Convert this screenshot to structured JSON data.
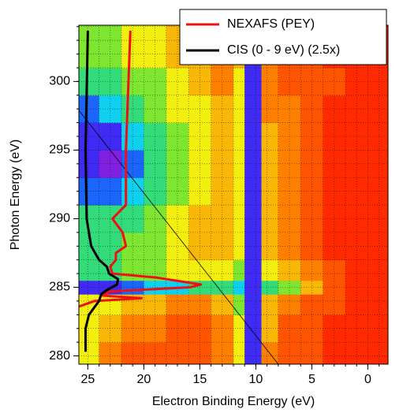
{
  "chart_data": {
    "type": "heatmap",
    "xlabel": "Electron Binding Energy (eV)",
    "ylabel": "Photon Energy (eV)",
    "xlim": [
      25.8,
      -1.8
    ],
    "ylim": [
      279.4,
      304.1
    ],
    "xticks": [
      25,
      20,
      15,
      10,
      5,
      0
    ],
    "yticks": [
      280,
      285,
      290,
      295,
      300
    ],
    "xminorticks": [
      25,
      24,
      23,
      22,
      21,
      20,
      19,
      18,
      17,
      16,
      15,
      14,
      13,
      12,
      11,
      10,
      9,
      8,
      7,
      6,
      5,
      4,
      3,
      2,
      1,
      0,
      -1
    ],
    "yminorticks": [
      280,
      281,
      282,
      283,
      284,
      285,
      286,
      287,
      288,
      289,
      290,
      291,
      292,
      293,
      294,
      295,
      296,
      297,
      298,
      299,
      300,
      301,
      302,
      303,
      304
    ],
    "grid": true,
    "legend": "upper right",
    "heatmap": {
      "x_edges": [
        25.8,
        24,
        22,
        20,
        18,
        16,
        14,
        12,
        11,
        9.5,
        8,
        6,
        4,
        2,
        -1.8
      ],
      "y_edges": [
        279.4,
        281,
        283,
        284.5,
        285.5,
        287,
        289,
        291,
        293,
        295,
        297,
        299,
        301,
        304.1
      ],
      "values": [
        [
          4,
          2,
          1,
          1,
          1,
          1,
          2,
          4,
          9,
          2,
          1,
          1,
          0,
          0
        ],
        [
          4,
          3,
          2,
          2,
          1,
          1,
          2,
          4,
          9,
          3,
          1,
          1,
          0,
          0
        ],
        [
          4,
          4,
          3,
          3,
          2,
          2,
          3,
          5,
          9,
          3,
          2,
          1,
          1,
          0
        ],
        [
          9,
          9,
          8,
          7,
          7,
          6,
          6,
          7,
          9,
          6,
          5,
          3,
          1,
          0
        ],
        [
          6,
          6,
          5,
          5,
          4,
          4,
          4,
          5,
          9,
          4,
          3,
          2,
          1,
          0
        ],
        [
          6,
          6,
          5,
          5,
          4,
          3,
          3,
          4,
          9,
          3,
          2,
          1,
          0,
          0
        ],
        [
          6,
          6,
          6,
          5,
          4,
          3,
          3,
          4,
          9,
          3,
          2,
          1,
          0,
          0
        ],
        [
          8,
          8,
          7,
          6,
          5,
          4,
          3,
          4,
          9,
          3,
          2,
          1,
          0,
          0
        ],
        [
          9,
          10,
          8,
          6,
          5,
          4,
          3,
          4,
          9,
          3,
          2,
          1,
          0,
          0
        ],
        [
          9,
          9,
          7,
          6,
          5,
          4,
          3,
          4,
          9,
          3,
          2,
          1,
          0,
          0
        ],
        [
          8,
          7,
          6,
          5,
          4,
          4,
          3,
          4,
          9,
          2,
          2,
          1,
          0,
          0
        ],
        [
          6,
          6,
          5,
          5,
          4,
          3,
          2,
          4,
          9,
          2,
          1,
          1,
          1,
          0
        ],
        [
          5,
          5,
          4,
          4,
          3,
          3,
          2,
          3,
          9,
          2,
          1,
          1,
          0,
          0
        ]
      ],
      "colormap": [
        {
          "value": 0,
          "color": "#ff2a00"
        },
        {
          "value": 2,
          "color": "#ff8000"
        },
        {
          "value": 4,
          "color": "#f2ee10"
        },
        {
          "value": 5.5,
          "color": "#44e040"
        },
        {
          "value": 7,
          "color": "#10d0f0"
        },
        {
          "value": 8.5,
          "color": "#2030ff"
        },
        {
          "value": 10,
          "color": "#8020e0"
        }
      ]
    },
    "diagonal": {
      "x": [
        25.8,
        8.0
      ],
      "y": [
        297.9,
        279.4
      ],
      "color": "#000000"
    },
    "series": [
      {
        "name": "NEXAFS (PEY)",
        "color": "#ee1111",
        "x": [
          21.2,
          21.6,
          21.6,
          22.8,
          21.9,
          21.6,
          22.5,
          22.5,
          23.0,
          22.8,
          18.8,
          14.9,
          15.9,
          23.0,
          23.7,
          20.2,
          24.4,
          25.8
        ],
        "y": [
          303.7,
          295,
          291,
          290,
          289,
          288,
          287.5,
          287,
          286.5,
          286,
          285.7,
          285.2,
          285,
          284.7,
          284.4,
          284.2,
          284,
          283.6
        ]
      },
      {
        "name": "CIS (0 - 9 eV) (2.5x)",
        "color": "#000000",
        "x": [
          25.0,
          25.2,
          25.1,
          24.7,
          24.0,
          23.3,
          23.1,
          22.3,
          22.4,
          23.3,
          23.8,
          24.0,
          24.9,
          25.2,
          25.2
        ],
        "y": [
          303.7,
          295,
          290,
          288,
          287,
          286.5,
          286,
          285.6,
          285.2,
          284.8,
          284.5,
          284,
          283,
          282,
          280.3
        ]
      }
    ]
  }
}
